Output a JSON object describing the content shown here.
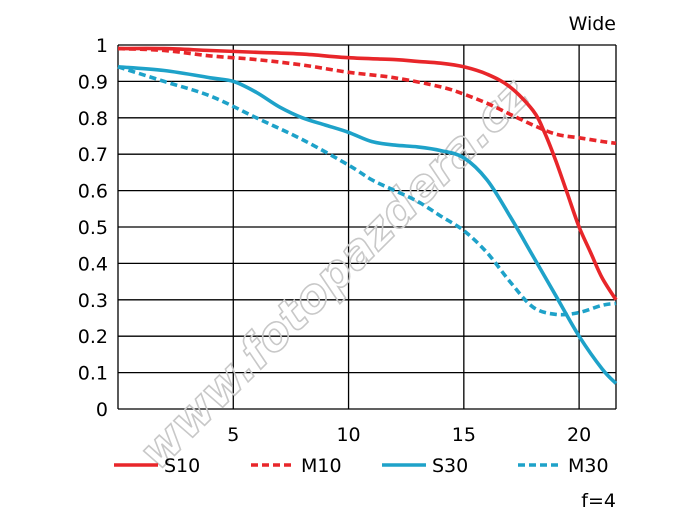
{
  "title": "Wide",
  "aperture_label": "f=4",
  "watermark": "www.fotopazdera.cz",
  "chart_data": {
    "type": "line",
    "title": "Wide",
    "xlabel": "",
    "ylabel": "",
    "xlim": [
      0,
      21.6
    ],
    "ylim": [
      0,
      1
    ],
    "x_ticks": [
      5,
      10,
      15,
      20
    ],
    "y_ticks": [
      0,
      0.1,
      0.2,
      0.3,
      0.4,
      0.5,
      0.6,
      0.7,
      0.8,
      0.9,
      1
    ],
    "y_tick_labels": [
      "0",
      "0.1",
      "0.2",
      "0.3",
      "0.4",
      "0.5",
      "0.6",
      "0.7",
      "0.8",
      "0.9",
      "1"
    ],
    "grid": true,
    "legend_position": "bottom",
    "series": [
      {
        "name": "S10",
        "color": "#e8262a",
        "style": "solid",
        "points": [
          [
            0,
            0.99
          ],
          [
            2,
            0.99
          ],
          [
            4,
            0.985
          ],
          [
            6,
            0.98
          ],
          [
            8,
            0.975
          ],
          [
            10,
            0.965
          ],
          [
            12,
            0.96
          ],
          [
            13,
            0.955
          ],
          [
            14,
            0.95
          ],
          [
            15,
            0.94
          ],
          [
            16,
            0.92
          ],
          [
            17,
            0.885
          ],
          [
            18,
            0.82
          ],
          [
            18.5,
            0.76
          ],
          [
            19,
            0.68
          ],
          [
            19.5,
            0.59
          ],
          [
            20,
            0.5
          ],
          [
            20.5,
            0.43
          ],
          [
            21,
            0.36
          ],
          [
            21.6,
            0.3
          ]
        ]
      },
      {
        "name": "M10",
        "color": "#e8262a",
        "style": "dashed",
        "points": [
          [
            0,
            0.99
          ],
          [
            2,
            0.985
          ],
          [
            4,
            0.97
          ],
          [
            6,
            0.96
          ],
          [
            8,
            0.945
          ],
          [
            10,
            0.925
          ],
          [
            12,
            0.91
          ],
          [
            14,
            0.885
          ],
          [
            15,
            0.865
          ],
          [
            16,
            0.84
          ],
          [
            17,
            0.81
          ],
          [
            18,
            0.78
          ],
          [
            19,
            0.755
          ],
          [
            20,
            0.745
          ],
          [
            21,
            0.735
          ],
          [
            21.6,
            0.73
          ]
        ]
      },
      {
        "name": "S30",
        "color": "#1ea2c9",
        "style": "solid",
        "points": [
          [
            0,
            0.94
          ],
          [
            2,
            0.93
          ],
          [
            4,
            0.91
          ],
          [
            5,
            0.9
          ],
          [
            6,
            0.87
          ],
          [
            7,
            0.83
          ],
          [
            8,
            0.8
          ],
          [
            9,
            0.78
          ],
          [
            10,
            0.76
          ],
          [
            11,
            0.735
          ],
          [
            12,
            0.725
          ],
          [
            13,
            0.72
          ],
          [
            14,
            0.71
          ],
          [
            15,
            0.69
          ],
          [
            16,
            0.63
          ],
          [
            17,
            0.53
          ],
          [
            18,
            0.42
          ],
          [
            19,
            0.31
          ],
          [
            20,
            0.2
          ],
          [
            21,
            0.11
          ],
          [
            21.6,
            0.07
          ]
        ]
      },
      {
        "name": "M30",
        "color": "#1ea2c9",
        "style": "dashed",
        "points": [
          [
            0,
            0.94
          ],
          [
            2,
            0.9
          ],
          [
            4,
            0.86
          ],
          [
            6,
            0.8
          ],
          [
            8,
            0.74
          ],
          [
            10,
            0.67
          ],
          [
            11,
            0.63
          ],
          [
            12,
            0.6
          ],
          [
            13,
            0.57
          ],
          [
            14,
            0.53
          ],
          [
            15,
            0.49
          ],
          [
            16,
            0.43
          ],
          [
            17,
            0.35
          ],
          [
            18,
            0.28
          ],
          [
            19,
            0.26
          ],
          [
            20,
            0.265
          ],
          [
            21,
            0.285
          ],
          [
            21.6,
            0.29
          ]
        ]
      }
    ]
  }
}
